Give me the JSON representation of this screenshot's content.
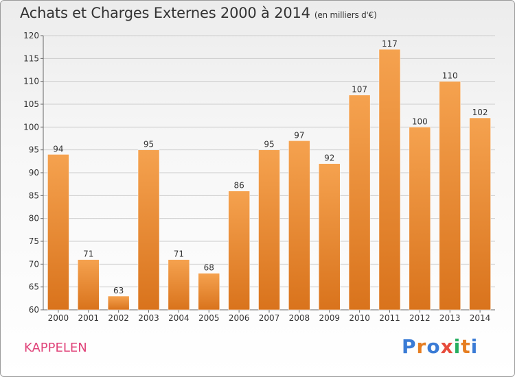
{
  "title": "Achats et Charges Externes 2000 à 2014",
  "subtitle": "(en milliers d'€)",
  "commune": "KAPPELEN",
  "logo": {
    "text": "Proxiti",
    "letters": [
      "P",
      "r",
      "o",
      "x",
      "i",
      "t",
      "i"
    ],
    "colors": [
      "#3a7bd5",
      "#e67e22",
      "#3a7bd5",
      "#e74c3c",
      "#27ae60",
      "#e67e22",
      "#3a7bd5"
    ]
  },
  "colors": {
    "bar_light": "#f5a24f",
    "bar_dark": "#d9731c",
    "grid": "#cccccc",
    "commune": "#e0447a"
  },
  "chart_data": {
    "type": "bar",
    "categories": [
      "2000",
      "2001",
      "2002",
      "2003",
      "2004",
      "2005",
      "2006",
      "2007",
      "2008",
      "2009",
      "2010",
      "2011",
      "2012",
      "2013",
      "2014"
    ],
    "values": [
      94,
      71,
      63,
      95,
      71,
      68,
      86,
      95,
      97,
      92,
      107,
      117,
      100,
      110,
      102
    ],
    "ylim": [
      60,
      120
    ],
    "yticks": [
      60,
      65,
      70,
      75,
      80,
      85,
      90,
      95,
      100,
      105,
      110,
      115,
      120
    ],
    "grid": true
  }
}
